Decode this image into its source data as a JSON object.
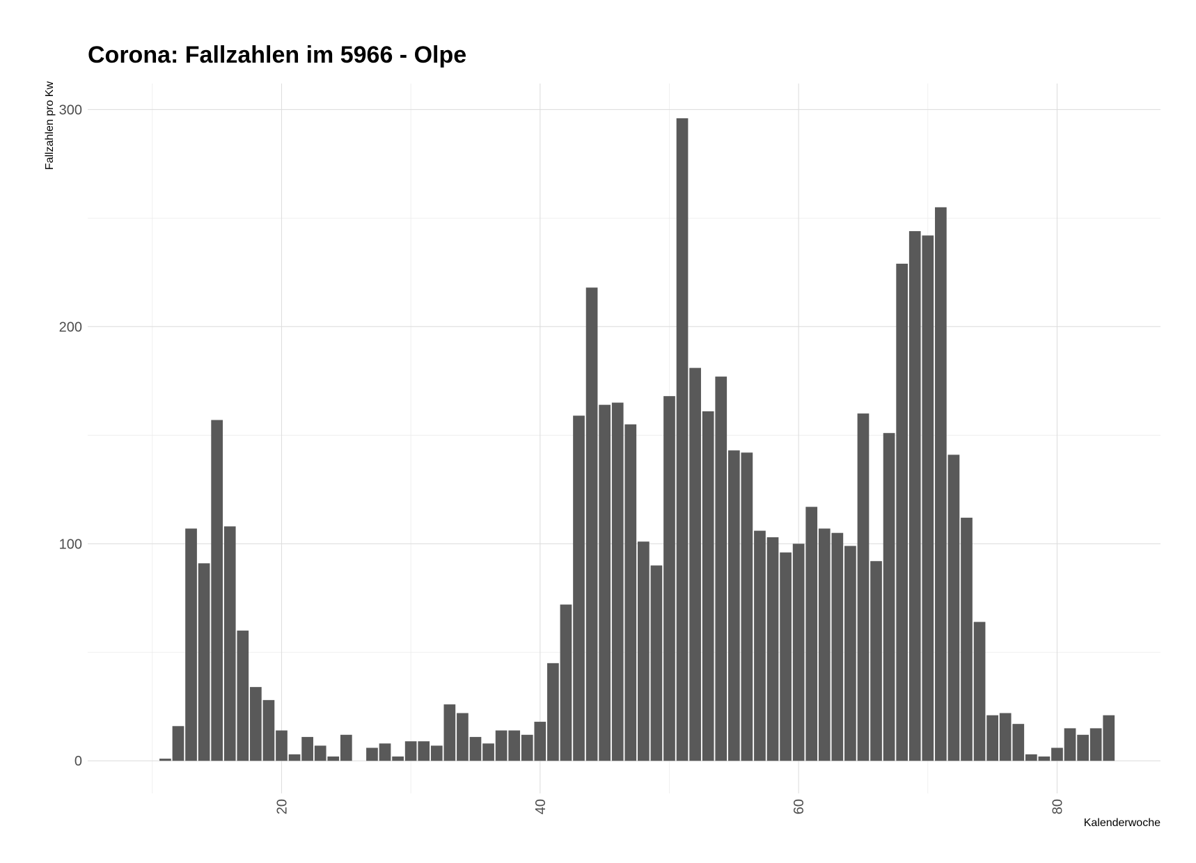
{
  "chart_data": {
    "type": "bar",
    "title": "Corona: Fallzahlen im 5966 - Olpe",
    "xlabel": "Kalenderwoche",
    "ylabel": "Fallzahlen pro Kw",
    "xlim": [
      5,
      88
    ],
    "ylim": [
      -15,
      312
    ],
    "x_ticks": [
      20,
      40,
      60,
      80
    ],
    "y_ticks": [
      0,
      100,
      200,
      300
    ],
    "x_tick_labels": [
      "20",
      "40",
      "60",
      "80"
    ],
    "y_tick_labels": [
      "0",
      "100",
      "200",
      "300"
    ],
    "grid": true,
    "legend": "none",
    "bar_color": "#595959",
    "x": [
      11,
      12,
      13,
      14,
      15,
      16,
      17,
      18,
      19,
      20,
      21,
      22,
      23,
      24,
      25,
      26,
      27,
      28,
      29,
      30,
      31,
      32,
      33,
      34,
      35,
      36,
      37,
      38,
      39,
      40,
      41,
      42,
      43,
      44,
      45,
      46,
      47,
      48,
      49,
      50,
      51,
      52,
      53,
      54,
      55,
      56,
      57,
      58,
      59,
      60,
      61,
      62,
      63,
      64,
      65,
      66,
      67,
      68,
      69,
      70,
      71,
      72,
      73,
      74,
      75,
      76,
      77,
      78,
      79,
      80,
      81,
      82,
      83,
      84
    ],
    "values": [
      1,
      16,
      107,
      91,
      157,
      108,
      60,
      34,
      28,
      14,
      3,
      11,
      7,
      2,
      12,
      0,
      6,
      8,
      2,
      9,
      9,
      7,
      26,
      22,
      11,
      8,
      14,
      14,
      12,
      18,
      45,
      72,
      159,
      218,
      164,
      165,
      155,
      101,
      90,
      168,
      296,
      181,
      161,
      177,
      143,
      142,
      106,
      103,
      96,
      100,
      117,
      107,
      105,
      99,
      160,
      92,
      151,
      229,
      244,
      242,
      255,
      141,
      112,
      64,
      21,
      22,
      17,
      3,
      2,
      6,
      15,
      12,
      15,
      21
    ]
  }
}
